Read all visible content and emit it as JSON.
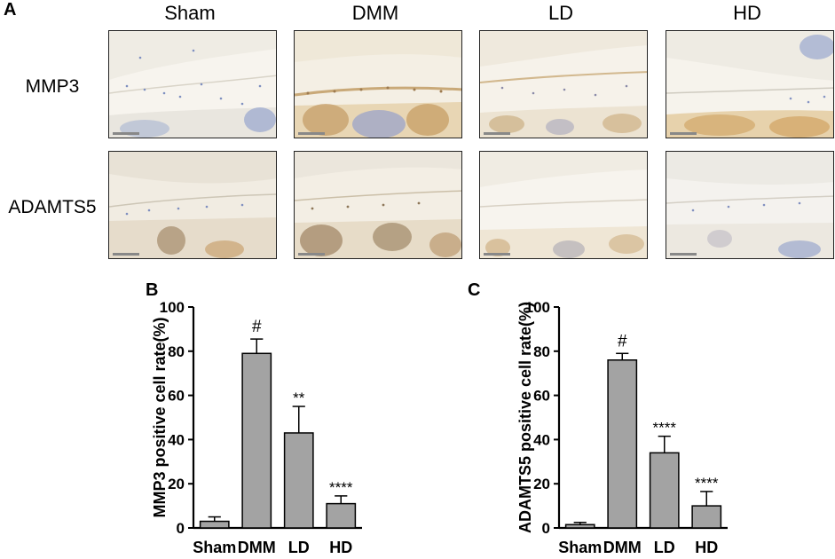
{
  "panels": {
    "a": "A",
    "b": "B",
    "c": "C"
  },
  "micrograph_grid": {
    "columns": [
      "Sham",
      "DMM",
      "LD",
      "HD"
    ],
    "rows": [
      "MMP3",
      "ADAMTS5"
    ]
  },
  "chart_data": [
    {
      "type": "bar",
      "panel": "B",
      "categories": [
        "Sham",
        "DMM",
        "LD",
        "HD"
      ],
      "values": [
        3,
        79,
        43,
        11
      ],
      "errors": [
        2,
        6.5,
        12,
        3.5
      ],
      "annotations": [
        "",
        "#",
        "**",
        "****"
      ],
      "title": "",
      "xlabel": "",
      "ylabel": "MMP3 positive cell rate(%)",
      "ylim": [
        0,
        100
      ],
      "yticks": [
        0,
        20,
        40,
        60,
        80,
        100
      ],
      "grid": false,
      "bar_color": "#a3a3a3"
    },
    {
      "type": "bar",
      "panel": "C",
      "categories": [
        "Sham",
        "DMM",
        "LD",
        "HD"
      ],
      "values": [
        1.5,
        76,
        34,
        10
      ],
      "errors": [
        1,
        3,
        7.5,
        6.5
      ],
      "annotations": [
        "",
        "#",
        "****",
        "****"
      ],
      "title": "",
      "xlabel": "",
      "ylabel": "ADAMTS5 positive cell rate(%)",
      "ylim": [
        0,
        100
      ],
      "yticks": [
        0,
        20,
        40,
        60,
        80,
        100
      ],
      "grid": false,
      "bar_color": "#a3a3a3"
    }
  ]
}
